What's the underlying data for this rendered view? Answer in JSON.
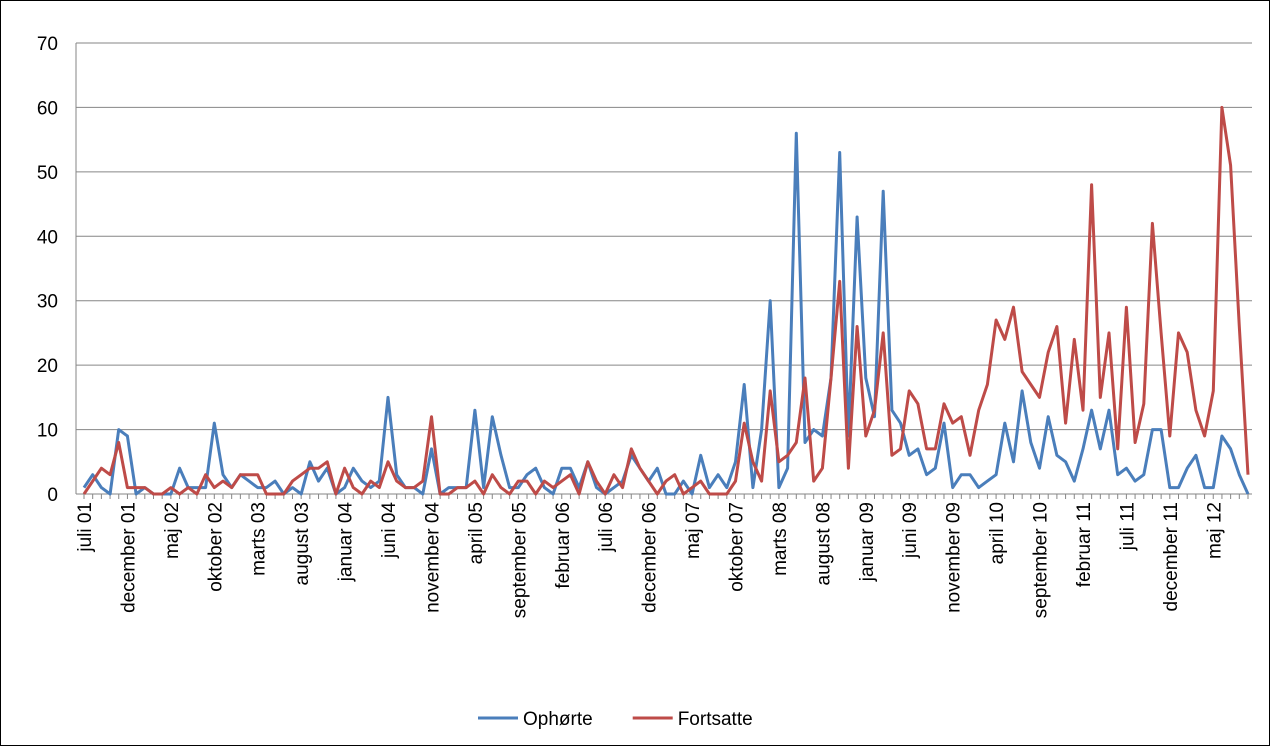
{
  "chart_data": {
    "type": "line",
    "categories": [
      "juli 01",
      null,
      null,
      null,
      null,
      "december 01",
      null,
      null,
      null,
      null,
      "maj 02",
      null,
      null,
      null,
      null,
      "oktober 02",
      null,
      null,
      null,
      null,
      "marts 03",
      null,
      null,
      null,
      null,
      "august 03",
      null,
      null,
      null,
      null,
      "januar 04",
      null,
      null,
      null,
      null,
      "juni 04",
      null,
      null,
      null,
      null,
      "november 04",
      null,
      null,
      null,
      null,
      "april 05",
      null,
      null,
      null,
      null,
      "september 05",
      null,
      null,
      null,
      null,
      "februar 06",
      null,
      null,
      null,
      null,
      "juli 06",
      null,
      null,
      null,
      null,
      "december 06",
      null,
      null,
      null,
      null,
      "maj 07",
      null,
      null,
      null,
      null,
      "oktober 07",
      null,
      null,
      null,
      null,
      "marts 08",
      null,
      null,
      null,
      null,
      "august 08",
      null,
      null,
      null,
      null,
      "januar 09",
      null,
      null,
      null,
      null,
      "juni 09",
      null,
      null,
      null,
      null,
      "november 09",
      null,
      null,
      null,
      null,
      "april 10",
      null,
      null,
      null,
      null,
      "september 10",
      null,
      null,
      null,
      null,
      "februar 11",
      null,
      null,
      null,
      null,
      "juli 11",
      null,
      null,
      null,
      null,
      "december 11",
      null,
      null,
      null,
      null,
      "maj 12",
      null,
      null,
      null,
      null
    ],
    "series": [
      {
        "name": "Ophørte",
        "color": "#4a7ebb",
        "values": [
          1,
          3,
          1,
          0,
          10,
          9,
          0,
          1,
          0,
          0,
          0,
          4,
          1,
          1,
          1,
          11,
          3,
          1,
          3,
          2,
          1,
          1,
          2,
          0,
          1,
          0,
          5,
          2,
          4,
          0,
          1,
          4,
          2,
          1,
          2,
          15,
          3,
          1,
          1,
          0,
          7,
          0,
          1,
          1,
          1,
          13,
          1,
          12,
          6,
          1,
          1,
          3,
          4,
          1,
          0,
          4,
          4,
          1,
          5,
          1,
          0,
          1,
          2,
          6,
          4,
          2,
          4,
          0,
          0,
          2,
          0,
          6,
          1,
          3,
          1,
          5,
          17,
          1,
          10,
          30,
          1,
          4,
          56,
          8,
          10,
          9,
          18,
          53,
          9,
          43,
          18,
          12,
          47,
          13,
          11,
          6,
          7,
          3,
          4,
          11,
          1,
          3,
          3,
          1,
          2,
          3,
          11,
          5,
          16,
          8,
          4,
          12,
          6,
          5,
          2,
          7,
          13,
          7,
          13,
          3,
          4,
          2,
          3,
          10,
          10,
          1,
          1,
          4,
          6,
          1,
          1,
          9,
          7,
          3,
          0
        ]
      },
      {
        "name": "Fortsatte",
        "color": "#be4b48",
        "values": [
          0,
          2,
          4,
          3,
          8,
          1,
          1,
          1,
          0,
          0,
          1,
          0,
          1,
          0,
          3,
          1,
          2,
          1,
          3,
          3,
          3,
          0,
          0,
          0,
          2,
          3,
          4,
          4,
          5,
          0,
          4,
          1,
          0,
          2,
          1,
          5,
          2,
          1,
          1,
          2,
          12,
          0,
          0,
          1,
          1,
          2,
          0,
          3,
          1,
          0,
          2,
          2,
          0,
          2,
          1,
          2,
          3,
          0,
          5,
          2,
          0,
          3,
          1,
          7,
          4,
          2,
          0,
          2,
          3,
          0,
          1,
          2,
          0,
          0,
          0,
          2,
          11,
          5,
          2,
          16,
          5,
          6,
          8,
          18,
          2,
          4,
          18,
          33,
          4,
          26,
          9,
          13,
          25,
          6,
          7,
          16,
          14,
          7,
          7,
          14,
          11,
          12,
          6,
          13,
          17,
          27,
          24,
          29,
          19,
          17,
          15,
          22,
          26,
          11,
          24,
          13,
          48,
          15,
          25,
          7,
          29,
          8,
          14,
          42,
          25,
          9,
          25,
          22,
          13,
          9,
          16,
          60,
          51,
          26,
          3
        ]
      }
    ],
    "ylim": [
      0,
      70
    ],
    "yticks": [
      0,
      10,
      20,
      30,
      40,
      50,
      60,
      70
    ],
    "grid": true,
    "legend": "bottom"
  }
}
